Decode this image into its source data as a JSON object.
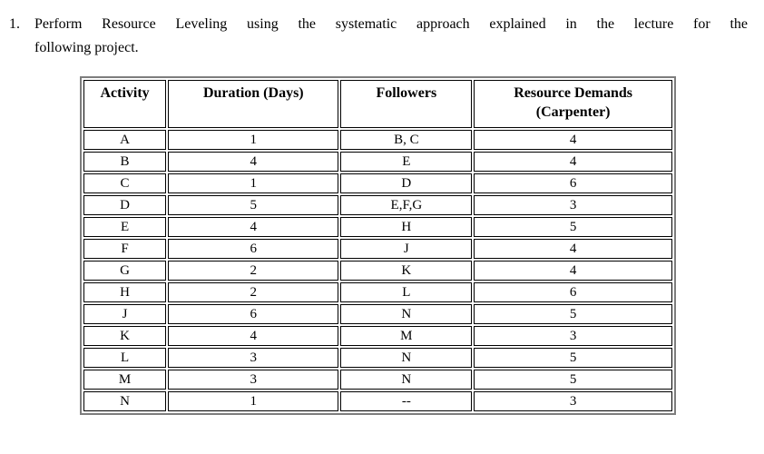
{
  "question": {
    "number": "1.",
    "line1": "Perform Resource Leveling using the systematic approach explained in the lecture for the",
    "line2": "following project."
  },
  "table": {
    "columns": [
      {
        "label": "Activity"
      },
      {
        "label": "Duration (Days)"
      },
      {
        "label": "Followers"
      },
      {
        "label": "Resource Demands",
        "sublabel": "(Carpenter)"
      }
    ],
    "rows": [
      {
        "activity": "A",
        "duration": "1",
        "followers": "B, C",
        "demand": "4"
      },
      {
        "activity": "B",
        "duration": "4",
        "followers": "E",
        "demand": "4"
      },
      {
        "activity": "C",
        "duration": "1",
        "followers": "D",
        "demand": "6"
      },
      {
        "activity": "D",
        "duration": "5",
        "followers": "E,F,G",
        "demand": "3"
      },
      {
        "activity": "E",
        "duration": "4",
        "followers": "H",
        "demand": "5"
      },
      {
        "activity": "F",
        "duration": "6",
        "followers": "J",
        "demand": "4"
      },
      {
        "activity": "G",
        "duration": "2",
        "followers": "K",
        "demand": "4"
      },
      {
        "activity": "H",
        "duration": "2",
        "followers": "L",
        "demand": "6"
      },
      {
        "activity": "J",
        "duration": "6",
        "followers": "N",
        "demand": "5"
      },
      {
        "activity": "K",
        "duration": "4",
        "followers": "M",
        "demand": "3"
      },
      {
        "activity": "L",
        "duration": "3",
        "followers": "N",
        "demand": "5"
      },
      {
        "activity": "M",
        "duration": "3",
        "followers": "N",
        "demand": "5"
      },
      {
        "activity": "N",
        "duration": "1",
        "followers": "--",
        "demand": "3"
      }
    ]
  },
  "colors": {
    "text": "#000000",
    "cell_border": "#000000",
    "frame_border": "#7d7d7d",
    "background": "#ffffff"
  }
}
